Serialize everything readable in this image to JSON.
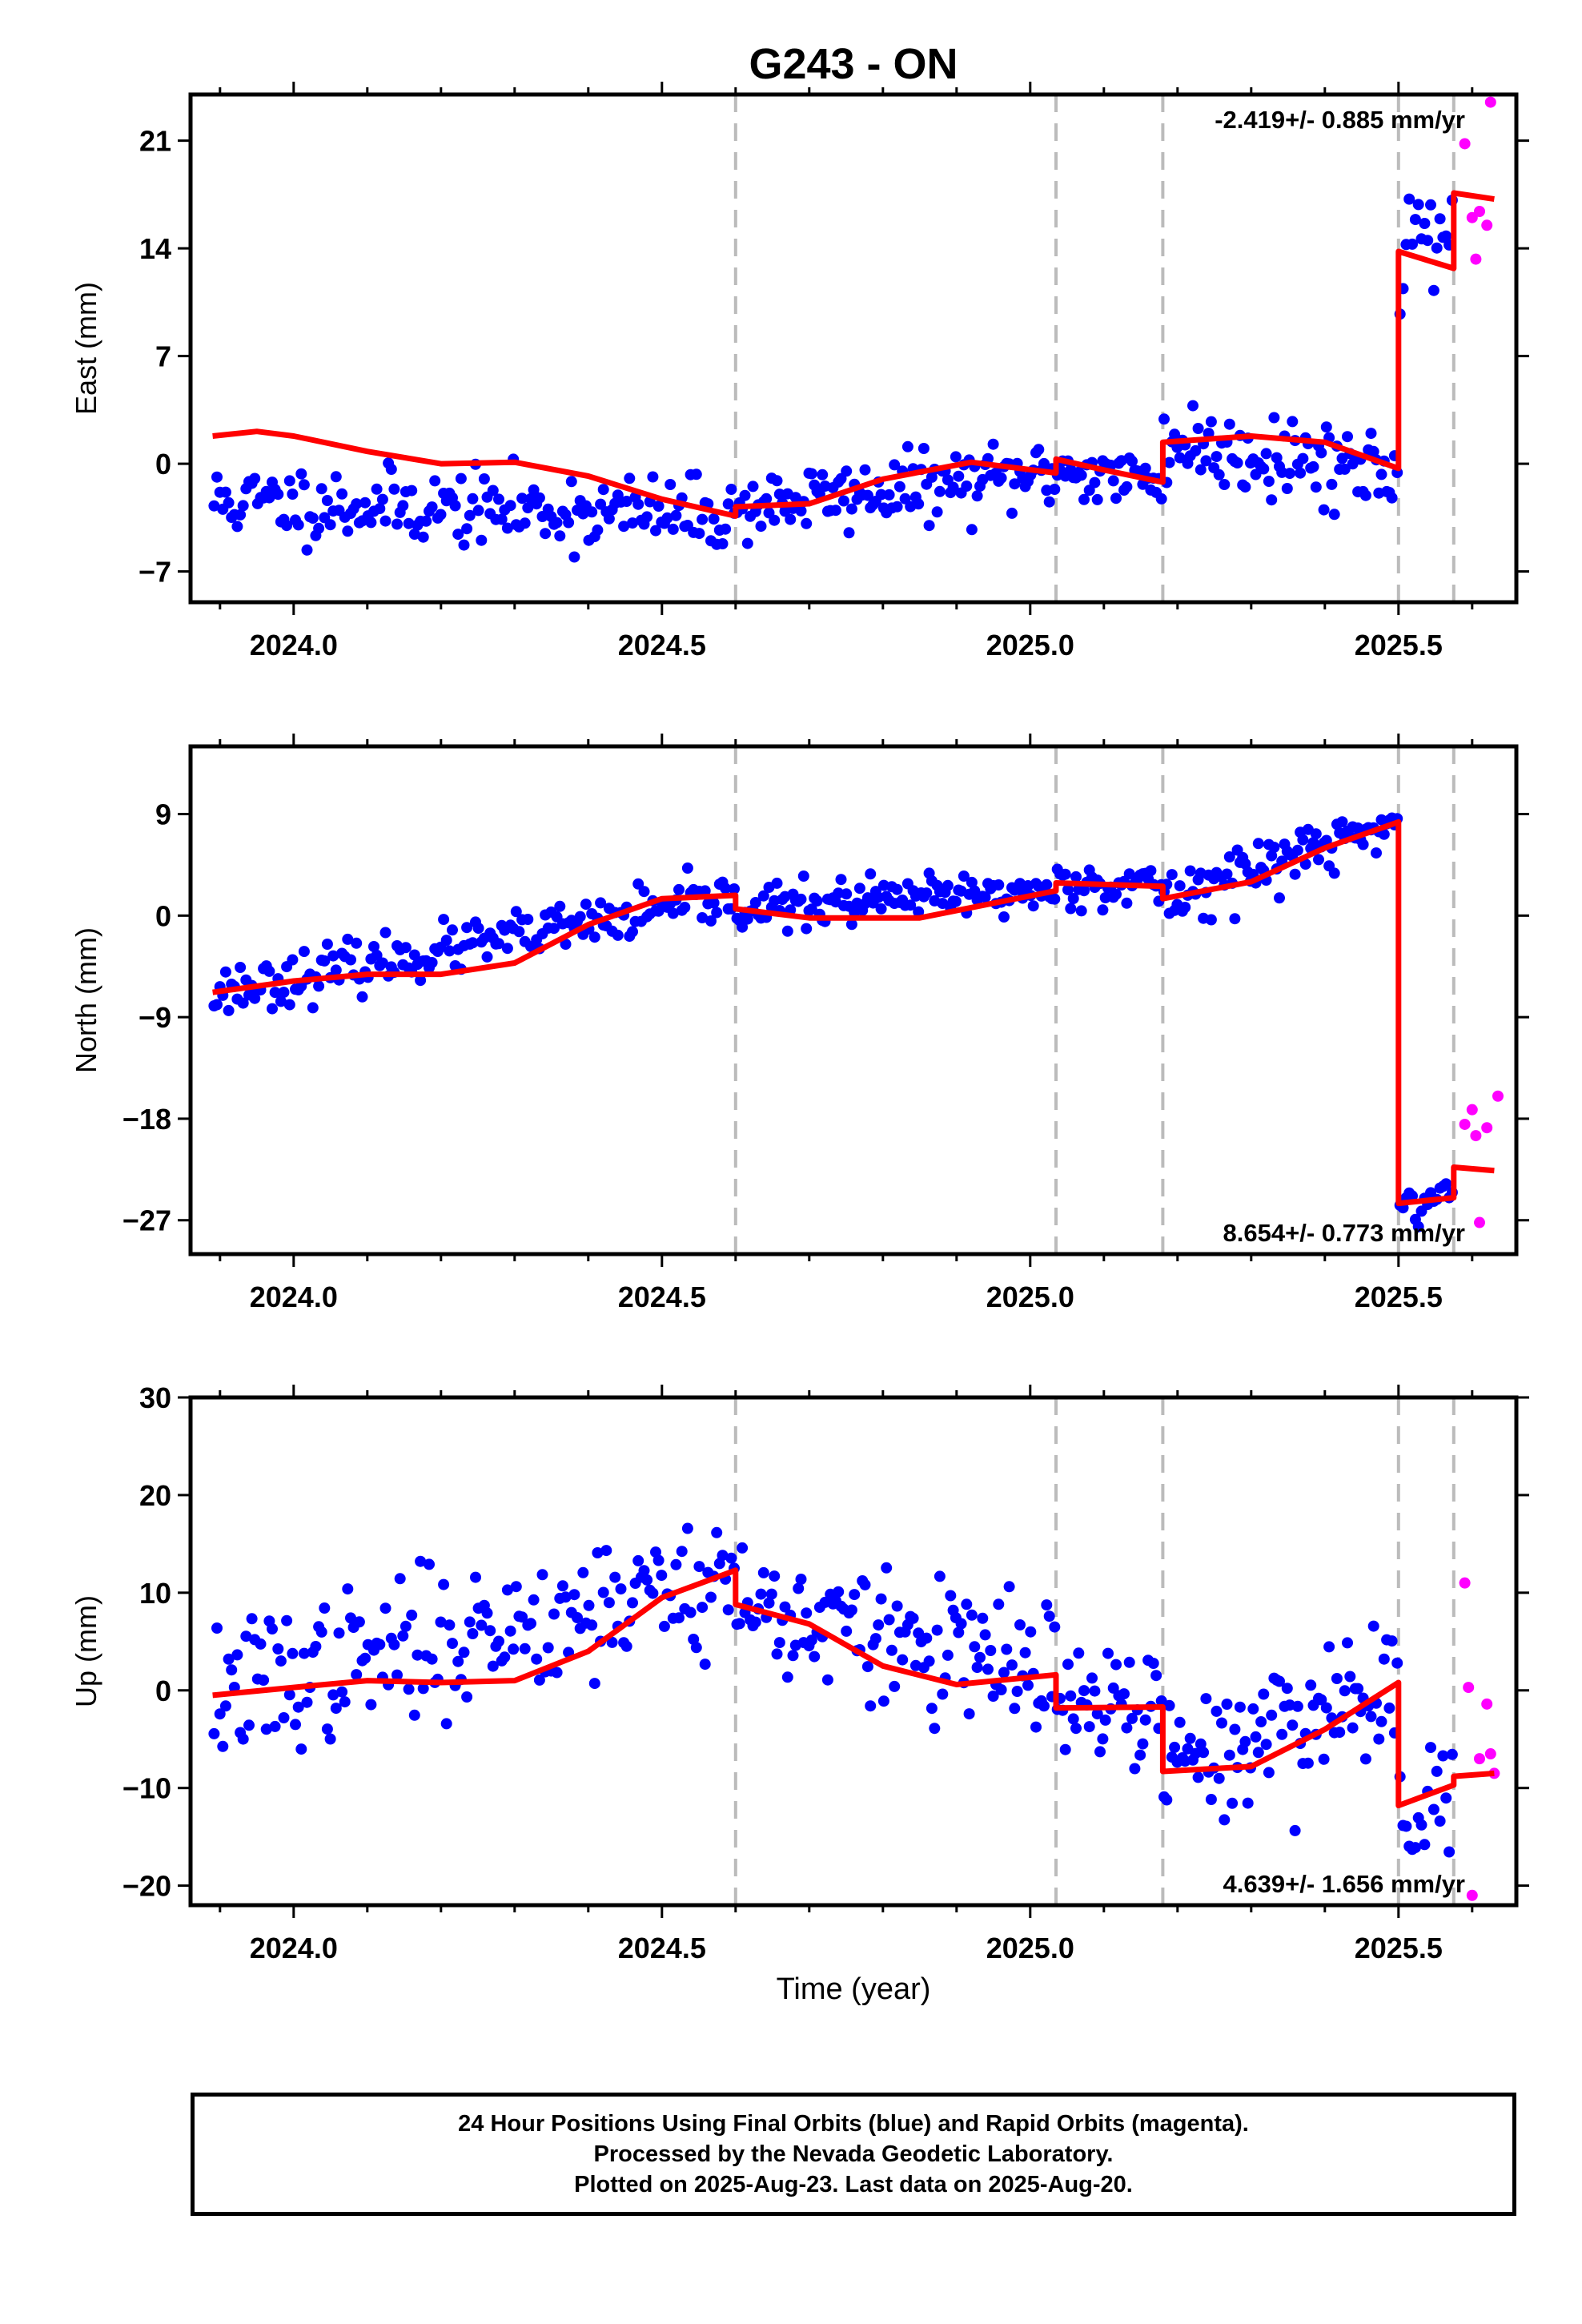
{
  "title": "G243 - ON",
  "xlabel": "Time (year)",
  "x_ticks": [
    "2024.0",
    "2024.5",
    "2025.0",
    "2025.5"
  ],
  "footer": {
    "line1": "24 Hour Positions Using Final Orbits (blue) and Rapid Orbits (magenta).",
    "line2": "Processed by the Nevada Geodetic Laboratory.",
    "line3": "Plotted on 2025-Aug-23. Last data on 2025-Aug-20."
  },
  "colors": {
    "final": "#0000ff",
    "rapid": "#ff00ff",
    "model": "#ff0000",
    "event_line": "#bbbbbb"
  },
  "chart_data": [
    {
      "type": "scatter",
      "ylabel": "East (mm)",
      "rate": "-2.419+/- 0.885 mm/yr",
      "xlim": [
        2023.86,
        2025.66
      ],
      "ylim": [
        -9.0,
        24.0
      ],
      "y_ticks": [
        21,
        14,
        7,
        0,
        -7
      ],
      "events": [
        2024.6,
        2025.035,
        2025.18,
        2025.5,
        2025.575
      ],
      "model": [
        [
          2023.89,
          1.8
        ],
        [
          2023.95,
          2.1
        ],
        [
          2024.0,
          1.8
        ],
        [
          2024.1,
          0.8
        ],
        [
          2024.2,
          0.0
        ],
        [
          2024.3,
          0.1
        ],
        [
          2024.4,
          -0.8
        ],
        [
          2024.5,
          -2.3
        ],
        [
          2024.6,
          -3.4
        ],
        [
          2024.6,
          -2.8
        ],
        [
          2024.7,
          -2.6
        ],
        [
          2024.8,
          -1.0
        ],
        [
          2024.92,
          0.1
        ],
        [
          2025.035,
          -0.6
        ],
        [
          2025.035,
          0.3
        ],
        [
          2025.1,
          -0.4
        ],
        [
          2025.18,
          -1.2
        ],
        [
          2025.18,
          1.4
        ],
        [
          2025.3,
          1.8
        ],
        [
          2025.4,
          1.4
        ],
        [
          2025.5,
          -0.3
        ],
        [
          2025.5,
          13.8
        ],
        [
          2025.575,
          12.7
        ],
        [
          2025.575,
          17.6
        ],
        [
          2025.63,
          17.2
        ]
      ],
      "rapid": [
        [
          2025.59,
          20.8
        ],
        [
          2025.6,
          16.0
        ],
        [
          2025.605,
          13.3
        ],
        [
          2025.61,
          16.4
        ],
        [
          2025.62,
          15.5
        ],
        [
          2025.625,
          23.5
        ]
      ],
      "series": [
        {
          "name": "final",
          "segments": [
            [
              2023.89,
              2024.6,
              -2.4,
              -3.4,
              1.2
            ],
            [
              2024.6,
              2025.035,
              -2.8,
              -0.6,
              1.1
            ],
            [
              2025.035,
              2025.18,
              -0.3,
              -1.2,
              1.0
            ],
            [
              2025.18,
              2025.5,
              1.4,
              -0.3,
              1.4
            ],
            [
              2025.5,
              2025.575,
              14.0,
              15.5,
              1.6
            ]
          ],
          "count": [
            180,
            120,
            40,
            90,
            18
          ],
          "seed": 11
        }
      ]
    },
    {
      "type": "scatter",
      "ylabel": "North (mm)",
      "rate": "8.654+/- 0.773 mm/yr",
      "xlim": [
        2023.86,
        2025.66
      ],
      "ylim": [
        -30.0,
        15.0
      ],
      "y_ticks": [
        9,
        0,
        -9,
        -18,
        -27
      ],
      "events": [
        2024.6,
        2025.035,
        2025.18,
        2025.5,
        2025.575
      ],
      "model": [
        [
          2023.89,
          -6.8
        ],
        [
          2024.0,
          -5.8
        ],
        [
          2024.1,
          -5.2
        ],
        [
          2024.2,
          -5.2
        ],
        [
          2024.3,
          -4.2
        ],
        [
          2024.4,
          -0.8
        ],
        [
          2024.5,
          1.5
        ],
        [
          2024.6,
          1.8
        ],
        [
          2024.6,
          0.6
        ],
        [
          2024.7,
          -0.2
        ],
        [
          2024.85,
          -0.2
        ],
        [
          2025.035,
          2.2
        ],
        [
          2025.035,
          2.9
        ],
        [
          2025.18,
          2.6
        ],
        [
          2025.18,
          1.5
        ],
        [
          2025.3,
          3.0
        ],
        [
          2025.4,
          6.0
        ],
        [
          2025.5,
          8.3
        ],
        [
          2025.5,
          -25.5
        ],
        [
          2025.575,
          -25.0
        ],
        [
          2025.575,
          -22.3
        ],
        [
          2025.63,
          -22.6
        ]
      ],
      "rapid": [
        [
          2025.59,
          -18.5
        ],
        [
          2025.6,
          -17.2
        ],
        [
          2025.605,
          -19.5
        ],
        [
          2025.61,
          -27.2
        ],
        [
          2025.62,
          -18.8
        ],
        [
          2025.635,
          -16.0
        ]
      ],
      "series": [
        {
          "name": "final",
          "segments": [
            [
              2023.89,
              2024.6,
              -6.8,
              1.6,
              1.1
            ],
            [
              2024.6,
              2025.035,
              0.6,
              2.2,
              1.0
            ],
            [
              2025.035,
              2025.18,
              2.9,
              2.6,
              0.9
            ],
            [
              2025.18,
              2025.5,
              1.5,
              8.3,
              1.3
            ],
            [
              2025.5,
              2025.575,
              -25.5,
              -25.0,
              1.2
            ]
          ],
          "count": [
            180,
            120,
            40,
            90,
            18
          ],
          "seed": 23
        }
      ]
    },
    {
      "type": "scatter",
      "ylabel": "Up (mm)",
      "rate": "4.639+/- 1.656 mm/yr",
      "xlim": [
        2023.86,
        2025.66
      ],
      "ylim": [
        -22.0,
        30.0
      ],
      "y_ticks": [
        30,
        20,
        10,
        0,
        -10,
        -20
      ],
      "events": [
        2024.6,
        2025.035,
        2025.18,
        2025.5,
        2025.575
      ],
      "model": [
        [
          2023.89,
          -0.5
        ],
        [
          2024.0,
          0.3
        ],
        [
          2024.1,
          1.0
        ],
        [
          2024.2,
          0.8
        ],
        [
          2024.3,
          1.0
        ],
        [
          2024.4,
          4.0
        ],
        [
          2024.5,
          9.5
        ],
        [
          2024.6,
          12.3
        ],
        [
          2024.6,
          8.8
        ],
        [
          2024.7,
          6.8
        ],
        [
          2024.8,
          2.5
        ],
        [
          2024.9,
          0.6
        ],
        [
          2025.035,
          1.6
        ],
        [
          2025.035,
          -1.8
        ],
        [
          2025.18,
          -1.7
        ],
        [
          2025.18,
          -8.3
        ],
        [
          2025.3,
          -7.8
        ],
        [
          2025.4,
          -4.0
        ],
        [
          2025.5,
          0.8
        ],
        [
          2025.5,
          -11.8
        ],
        [
          2025.575,
          -9.7
        ],
        [
          2025.575,
          -8.8
        ],
        [
          2025.63,
          -8.5
        ]
      ],
      "rapid": [
        [
          2025.59,
          11.0
        ],
        [
          2025.595,
          0.3
        ],
        [
          2025.6,
          -21.0
        ],
        [
          2025.61,
          -7.0
        ],
        [
          2025.62,
          -1.4
        ],
        [
          2025.625,
          -6.5
        ],
        [
          2025.63,
          -8.5
        ]
      ],
      "series": [
        {
          "name": "final",
          "segments": [
            [
              2023.89,
              2024.6,
              -0.5,
              12.0,
              3.6
            ],
            [
              2024.6,
              2025.035,
              8.8,
              1.4,
              3.4
            ],
            [
              2025.035,
              2025.18,
              -1.8,
              -1.7,
              3.0
            ],
            [
              2025.18,
              2025.5,
              -8.3,
              0.8,
              3.6
            ],
            [
              2025.5,
              2025.575,
              -11.8,
              -9.7,
              3.5
            ]
          ],
          "count": [
            180,
            120,
            40,
            90,
            18
          ],
          "seed": 37
        }
      ]
    }
  ]
}
